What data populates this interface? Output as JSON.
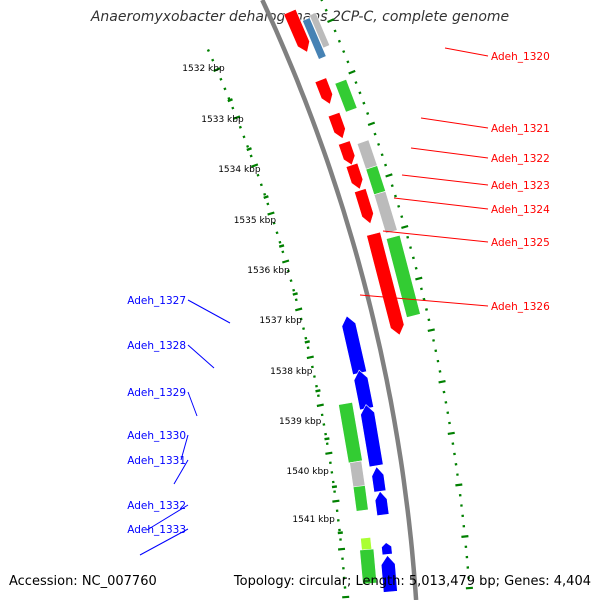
{
  "title": "Anaeromyxobacter dehalogenans 2CP-C, complete genome",
  "footer": {
    "accession": "Accession: NC_007760",
    "summary": "Topology: circular; Length: 5,013,479 bp; Genes: 4,404"
  },
  "colors": {
    "forward": "#ff0000",
    "reverse": "#0000ff",
    "green": "#33cc33",
    "grey": "#bbbbbb",
    "lime": "#aaff33",
    "steelblue": "#4682b4",
    "backbone": "#808080",
    "dots": "#008000"
  },
  "axis": {
    "unit": "kbp",
    "start_kbp": 1531.2,
    "end_kbp": 1542.0,
    "ticks": [
      1532,
      1533,
      1534,
      1535,
      1536,
      1537,
      1538,
      1539,
      1540,
      1541
    ],
    "tick_labels": [
      "1532 kbp",
      "1533 kbp",
      "1534 kbp",
      "1535 kbp",
      "1536 kbp",
      "1537 kbp",
      "1538 kbp",
      "1539 kbp",
      "1540 kbp",
      "1541 kbp"
    ]
  },
  "forward_labels": [
    "Adeh_1320",
    "Adeh_1321",
    "Adeh_1322",
    "Adeh_1323",
    "Adeh_1324",
    "Adeh_1325",
    "Adeh_1326"
  ],
  "reverse_labels": [
    "Adeh_1327",
    "Adeh_1328",
    "Adeh_1329",
    "Adeh_1330",
    "Adeh_1331",
    "Adeh_1332",
    "Adeh_1333"
  ]
}
